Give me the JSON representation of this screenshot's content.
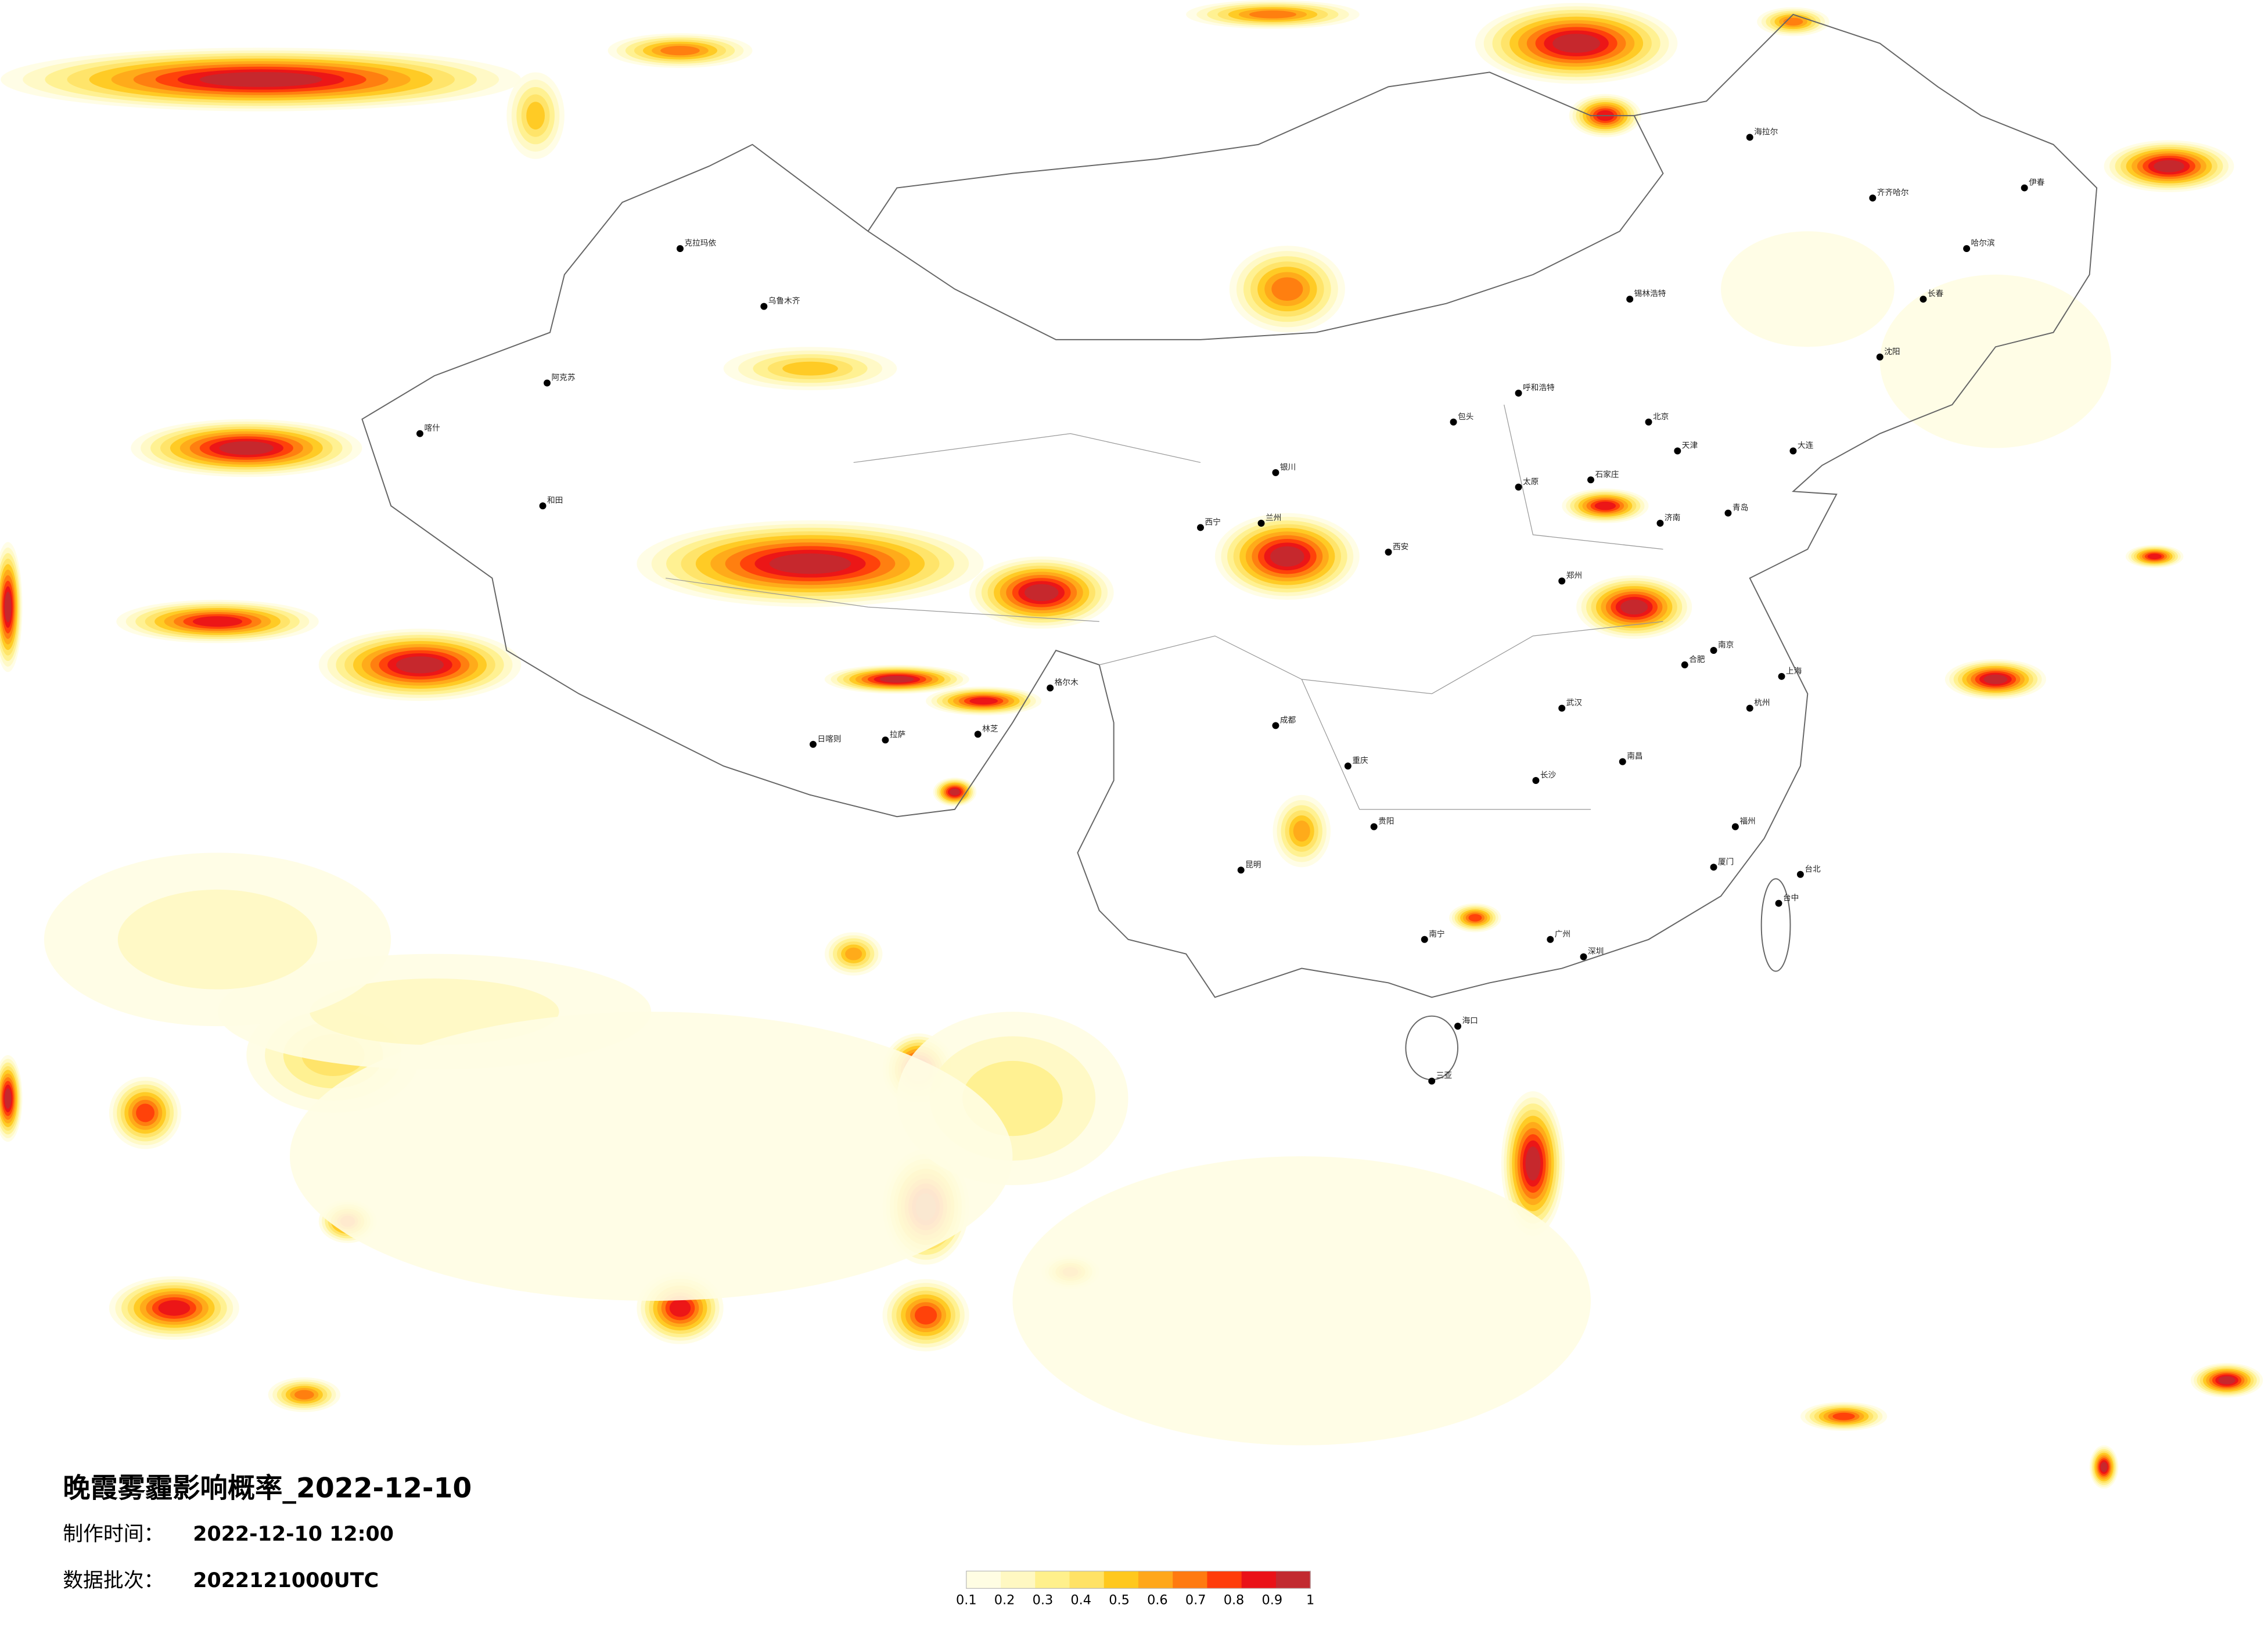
{
  "header": {
    "title": "晚霞雾霾影响概率_2022-12-10",
    "made_label": "制作时间：",
    "made_time": "2022-12-10 12:00",
    "batch_label": "数据批次：",
    "batch": "2022121000UTC"
  },
  "legend": {
    "colors": [
      "#fffde3",
      "#fff8c2",
      "#fff08c",
      "#ffe266",
      "#ffc81e",
      "#ffa71a",
      "#ff7a10",
      "#ff3c0a",
      "#ea1218",
      "#c22a30"
    ],
    "ticks": [
      0.1,
      0.2,
      0.3,
      0.4,
      0.5,
      0.6,
      0.7,
      0.8,
      0.9,
      1
    ]
  },
  "cities": [
    "北京",
    "天津",
    "石家庄",
    "济南",
    "郑州",
    "西安",
    "上海",
    "南京",
    "杭州",
    "武汉",
    "长沙",
    "广州",
    "深圳",
    "重庆",
    "成都",
    "昆明",
    "贵阳",
    "南宁",
    "海口",
    "拉萨",
    "日喀则",
    "乌鲁木齐",
    "喀什",
    "和田",
    "克拉玛依",
    "哈尔滨",
    "长春",
    "沈阳",
    "呼和浩特",
    "兰州",
    "银川",
    "西宁",
    "台北",
    "台中",
    "福州",
    "南昌",
    "合肥",
    "太原",
    "包头",
    "齐齐哈尔",
    "海拉尔",
    "伊春",
    "大连",
    "青岛",
    "厦门",
    "三亚",
    "林芝",
    "格尔木",
    "阿克苏",
    "锡林浩特"
  ]
}
